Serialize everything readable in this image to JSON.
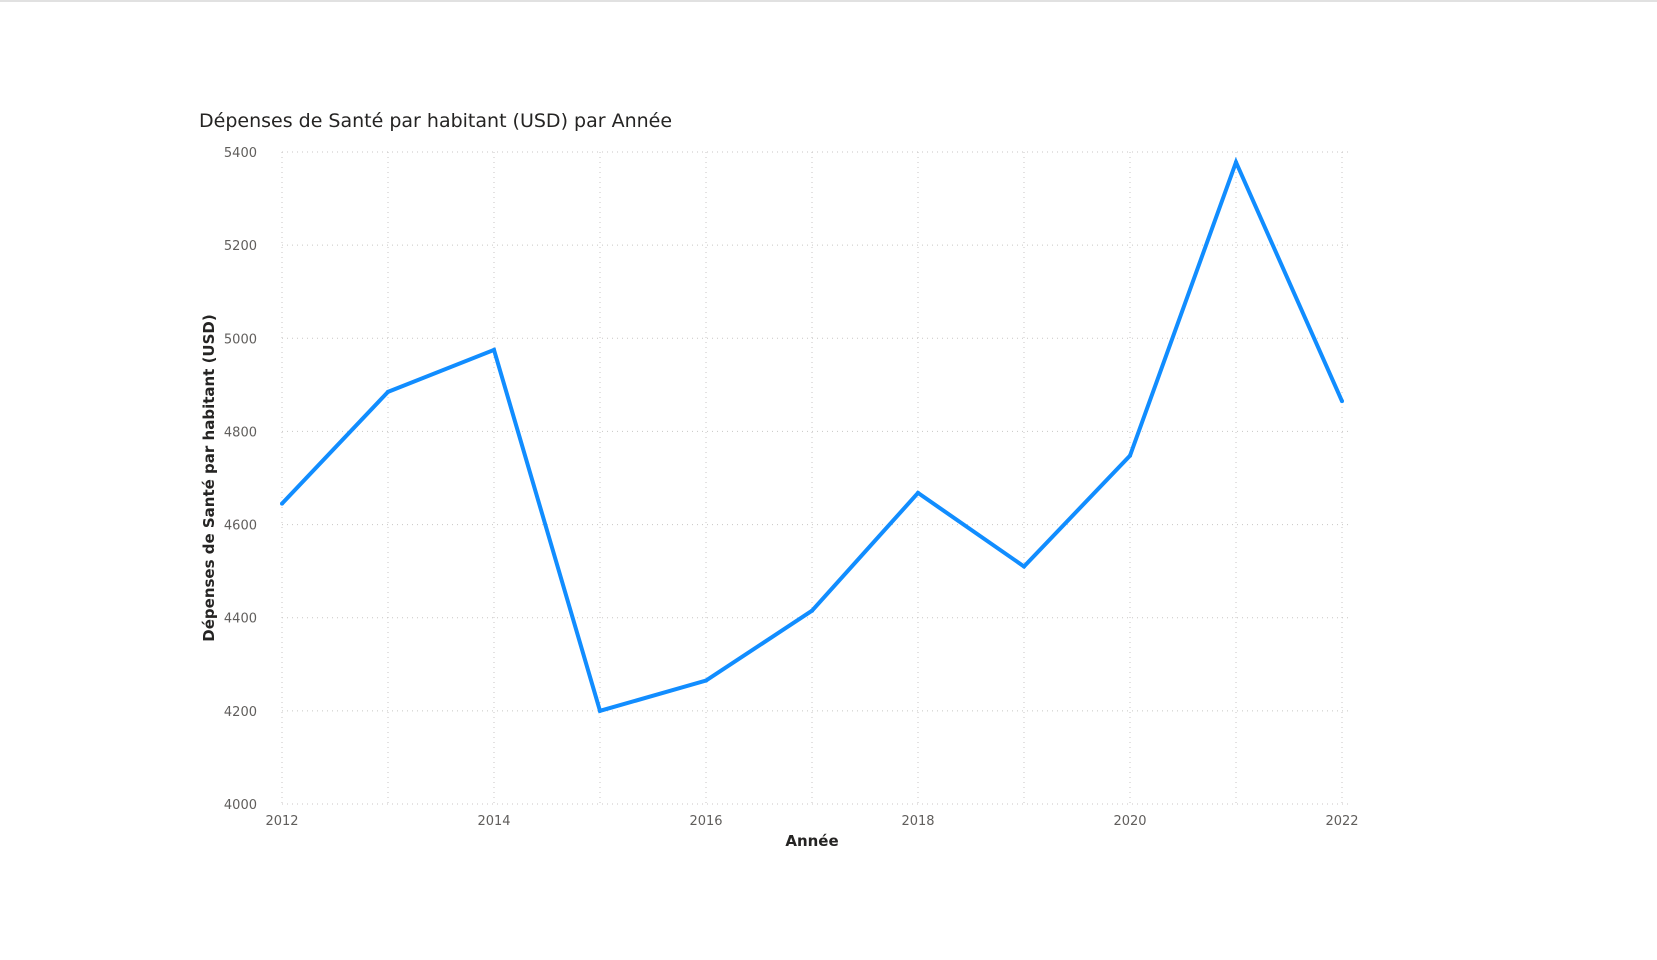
{
  "chart_data": {
    "type": "line",
    "title": "Dépenses de Santé par habitant (USD) par Année",
    "xlabel": "Année",
    "ylabel": "Dépenses de Santé par habitant (USD)",
    "x": [
      2012,
      2013,
      2014,
      2015,
      2016,
      2017,
      2018,
      2019,
      2020,
      2021,
      2022
    ],
    "xticks": [
      2012,
      2014,
      2016,
      2018,
      2020,
      2022
    ],
    "yticks": [
      4000,
      4200,
      4400,
      4600,
      4800,
      5000,
      5200,
      5400
    ],
    "xlim": [
      2012,
      2022
    ],
    "ylim": [
      4000,
      5400
    ],
    "grid": true,
    "series": [
      {
        "values": [
          4645,
          4885,
          4975,
          4200,
          4265,
          4415,
          4668,
          4510,
          4748,
          5378,
          4865
        ],
        "color": "#118DFF"
      }
    ]
  }
}
